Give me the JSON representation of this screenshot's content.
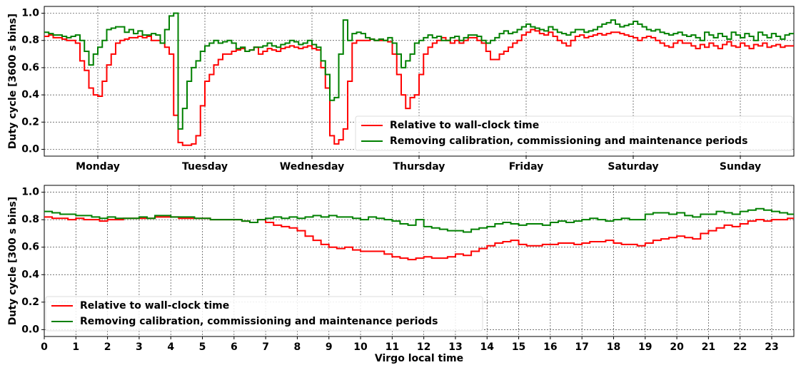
{
  "chart_data": [
    {
      "type": "line",
      "drawstyle": "steps-post",
      "ylabel": "Duty cycle [3600 s bins]",
      "xlim": [
        0,
        168
      ],
      "ylim": [
        -0.05,
        1.05
      ],
      "xticks": [
        {
          "value": 12,
          "label": "Monday"
        },
        {
          "value": 36,
          "label": "Tuesday"
        },
        {
          "value": 60,
          "label": "Wednesday"
        },
        {
          "value": 84,
          "label": "Thursday"
        },
        {
          "value": 108,
          "label": "Friday"
        },
        {
          "value": 132,
          "label": "Saturday"
        },
        {
          "value": 156,
          "label": "Sunday"
        }
      ],
      "yticks": [
        {
          "value": 0,
          "label": "0.0"
        },
        0.2,
        0.4,
        0.6,
        0.8,
        {
          "value": 1,
          "label": "1.0"
        }
      ],
      "grid": true,
      "legend_loc": "lower right",
      "x": [
        0,
        1,
        2,
        3,
        4,
        5,
        6,
        7,
        8,
        9,
        10,
        11,
        12,
        13,
        14,
        15,
        16,
        17,
        18,
        19,
        20,
        21,
        22,
        23,
        24,
        25,
        26,
        27,
        28,
        29,
        30,
        31,
        32,
        33,
        34,
        35,
        36,
        37,
        38,
        39,
        40,
        41,
        42,
        43,
        44,
        45,
        46,
        47,
        48,
        49,
        50,
        51,
        52,
        53,
        54,
        55,
        56,
        57,
        58,
        59,
        60,
        61,
        62,
        63,
        64,
        65,
        66,
        67,
        68,
        69,
        70,
        71,
        72,
        73,
        74,
        75,
        76,
        77,
        78,
        79,
        80,
        81,
        82,
        83,
        84,
        85,
        86,
        87,
        88,
        89,
        90,
        91,
        92,
        93,
        94,
        95,
        96,
        97,
        98,
        99,
        100,
        101,
        102,
        103,
        104,
        105,
        106,
        107,
        108,
        109,
        110,
        111,
        112,
        113,
        114,
        115,
        116,
        117,
        118,
        119,
        120,
        121,
        122,
        123,
        124,
        125,
        126,
        127,
        128,
        129,
        130,
        131,
        132,
        133,
        134,
        135,
        136,
        137,
        138,
        139,
        140,
        141,
        142,
        143,
        144,
        145,
        146,
        147,
        148,
        149,
        150,
        151,
        152,
        153,
        154,
        155,
        156,
        157,
        158,
        159,
        160,
        161,
        162,
        163,
        164,
        165,
        166,
        167
      ],
      "series": [
        {
          "name": "Relative to wall-clock time",
          "color": "#ff0000",
          "values": [
            0.83,
            0.84,
            0.82,
            0.82,
            0.81,
            0.8,
            0.8,
            0.78,
            0.65,
            0.58,
            0.45,
            0.4,
            0.39,
            0.5,
            0.62,
            0.7,
            0.78,
            0.8,
            0.81,
            0.82,
            0.82,
            0.83,
            0.82,
            0.83,
            0.8,
            0.8,
            0.78,
            0.75,
            0.7,
            0.25,
            0.05,
            0.03,
            0.03,
            0.04,
            0.1,
            0.32,
            0.5,
            0.55,
            0.62,
            0.66,
            0.7,
            0.7,
            0.72,
            0.73,
            0.74,
            0.72,
            0.73,
            0.75,
            0.7,
            0.72,
            0.74,
            0.73,
            0.72,
            0.74,
            0.75,
            0.76,
            0.75,
            0.74,
            0.75,
            0.76,
            0.74,
            0.73,
            0.6,
            0.45,
            0.1,
            0.04,
            0.07,
            0.15,
            0.5,
            0.78,
            0.8,
            0.8,
            0.8,
            0.81,
            0.8,
            0.8,
            0.8,
            0.79,
            0.7,
            0.55,
            0.4,
            0.3,
            0.38,
            0.4,
            0.55,
            0.7,
            0.75,
            0.78,
            0.8,
            0.82,
            0.8,
            0.78,
            0.8,
            0.78,
            0.8,
            0.82,
            0.82,
            0.8,
            0.78,
            0.72,
            0.66,
            0.66,
            0.7,
            0.72,
            0.75,
            0.78,
            0.8,
            0.84,
            0.86,
            0.88,
            0.87,
            0.85,
            0.84,
            0.86,
            0.83,
            0.8,
            0.78,
            0.76,
            0.8,
            0.83,
            0.84,
            0.82,
            0.83,
            0.84,
            0.85,
            0.84,
            0.85,
            0.86,
            0.86,
            0.85,
            0.84,
            0.83,
            0.82,
            0.8,
            0.82,
            0.83,
            0.82,
            0.8,
            0.78,
            0.76,
            0.75,
            0.78,
            0.8,
            0.78,
            0.78,
            0.76,
            0.74,
            0.77,
            0.75,
            0.78,
            0.76,
            0.74,
            0.77,
            0.79,
            0.76,
            0.75,
            0.78,
            0.76,
            0.74,
            0.77,
            0.76,
            0.78,
            0.75,
            0.76,
            0.77,
            0.75,
            0.76,
            0.76
          ]
        },
        {
          "name": "Removing calibration, commissioning and maintenance periods",
          "color": "#008000",
          "values": [
            0.86,
            0.85,
            0.84,
            0.84,
            0.83,
            0.82,
            0.83,
            0.84,
            0.8,
            0.72,
            0.62,
            0.7,
            0.75,
            0.8,
            0.88,
            0.89,
            0.9,
            0.9,
            0.86,
            0.88,
            0.85,
            0.87,
            0.84,
            0.84,
            0.85,
            0.84,
            0.78,
            0.88,
            0.98,
            1.0,
            0.15,
            0.3,
            0.5,
            0.6,
            0.65,
            0.72,
            0.76,
            0.78,
            0.8,
            0.78,
            0.79,
            0.8,
            0.78,
            0.74,
            0.75,
            0.72,
            0.73,
            0.75,
            0.75,
            0.76,
            0.78,
            0.76,
            0.75,
            0.77,
            0.78,
            0.8,
            0.79,
            0.77,
            0.78,
            0.8,
            0.77,
            0.75,
            0.65,
            0.55,
            0.36,
            0.38,
            0.7,
            0.95,
            0.8,
            0.85,
            0.86,
            0.85,
            0.82,
            0.81,
            0.8,
            0.81,
            0.8,
            0.82,
            0.78,
            0.7,
            0.6,
            0.65,
            0.7,
            0.78,
            0.8,
            0.82,
            0.84,
            0.82,
            0.83,
            0.8,
            0.8,
            0.82,
            0.83,
            0.8,
            0.82,
            0.84,
            0.84,
            0.83,
            0.8,
            0.78,
            0.8,
            0.82,
            0.85,
            0.87,
            0.85,
            0.86,
            0.88,
            0.9,
            0.92,
            0.9,
            0.89,
            0.88,
            0.87,
            0.9,
            0.88,
            0.86,
            0.85,
            0.84,
            0.86,
            0.88,
            0.88,
            0.86,
            0.87,
            0.88,
            0.9,
            0.92,
            0.93,
            0.95,
            0.92,
            0.9,
            0.91,
            0.92,
            0.94,
            0.92,
            0.9,
            0.88,
            0.87,
            0.88,
            0.86,
            0.85,
            0.84,
            0.85,
            0.86,
            0.84,
            0.83,
            0.84,
            0.82,
            0.8,
            0.86,
            0.84,
            0.82,
            0.85,
            0.83,
            0.81,
            0.86,
            0.84,
            0.82,
            0.85,
            0.83,
            0.8,
            0.86,
            0.84,
            0.82,
            0.85,
            0.83,
            0.81,
            0.84,
            0.85
          ]
        }
      ]
    },
    {
      "type": "line",
      "drawstyle": "steps-post",
      "ylabel": "Duty cycle [300 s bins]",
      "xlabel": "Virgo local time",
      "xlim": [
        0,
        23.7
      ],
      "ylim": [
        -0.05,
        1.05
      ],
      "xticks": [
        0,
        1,
        2,
        3,
        4,
        5,
        6,
        7,
        8,
        9,
        10,
        11,
        12,
        13,
        14,
        15,
        16,
        17,
        18,
        19,
        20,
        21,
        22,
        23
      ],
      "yticks": [
        {
          "value": 0,
          "label": "0.0"
        },
        0.2,
        0.4,
        0.6,
        0.8,
        {
          "value": 1,
          "label": "1.0"
        }
      ],
      "grid": true,
      "legend_loc": "lower left",
      "x": [
        0,
        0.25,
        0.5,
        0.75,
        1,
        1.25,
        1.5,
        1.75,
        2,
        2.25,
        2.5,
        2.75,
        3,
        3.25,
        3.5,
        3.75,
        4,
        4.25,
        4.5,
        4.75,
        5,
        5.25,
        5.5,
        5.75,
        6,
        6.25,
        6.5,
        6.75,
        7,
        7.25,
        7.5,
        7.75,
        8,
        8.25,
        8.5,
        8.75,
        9,
        9.25,
        9.5,
        9.75,
        10,
        10.25,
        10.5,
        10.75,
        11,
        11.25,
        11.5,
        11.75,
        12,
        12.25,
        12.5,
        12.75,
        13,
        13.25,
        13.5,
        13.75,
        14,
        14.25,
        14.5,
        14.75,
        15,
        15.25,
        15.5,
        15.75,
        16,
        16.25,
        16.5,
        16.75,
        17,
        17.25,
        17.5,
        17.75,
        18,
        18.25,
        18.5,
        18.75,
        19,
        19.25,
        19.5,
        19.75,
        20,
        20.25,
        20.5,
        20.75,
        21,
        21.25,
        21.5,
        21.75,
        22,
        22.25,
        22.5,
        22.75,
        23,
        23.25,
        23.5,
        23.75
      ],
      "series": [
        {
          "name": "Relative to wall-clock time",
          "color": "#ff0000",
          "values": [
            0.82,
            0.81,
            0.81,
            0.8,
            0.81,
            0.8,
            0.8,
            0.79,
            0.8,
            0.8,
            0.81,
            0.81,
            0.81,
            0.81,
            0.82,
            0.82,
            0.82,
            0.81,
            0.81,
            0.81,
            0.81,
            0.8,
            0.8,
            0.8,
            0.8,
            0.79,
            0.78,
            0.8,
            0.78,
            0.76,
            0.75,
            0.74,
            0.72,
            0.68,
            0.65,
            0.62,
            0.6,
            0.59,
            0.6,
            0.58,
            0.57,
            0.57,
            0.57,
            0.55,
            0.53,
            0.52,
            0.51,
            0.52,
            0.53,
            0.52,
            0.52,
            0.53,
            0.55,
            0.54,
            0.57,
            0.59,
            0.61,
            0.63,
            0.64,
            0.65,
            0.62,
            0.61,
            0.61,
            0.62,
            0.62,
            0.63,
            0.63,
            0.62,
            0.63,
            0.64,
            0.64,
            0.65,
            0.63,
            0.62,
            0.62,
            0.61,
            0.63,
            0.65,
            0.66,
            0.67,
            0.68,
            0.67,
            0.66,
            0.7,
            0.72,
            0.74,
            0.76,
            0.75,
            0.77,
            0.79,
            0.8,
            0.79,
            0.8,
            0.8,
            0.81,
            0.82
          ]
        },
        {
          "name": "Removing calibration, commissioning and maintenance periods",
          "color": "#008000",
          "values": [
            0.86,
            0.85,
            0.84,
            0.84,
            0.83,
            0.83,
            0.82,
            0.81,
            0.82,
            0.81,
            0.81,
            0.81,
            0.82,
            0.81,
            0.83,
            0.83,
            0.82,
            0.82,
            0.82,
            0.81,
            0.81,
            0.8,
            0.8,
            0.8,
            0.8,
            0.79,
            0.78,
            0.8,
            0.81,
            0.82,
            0.81,
            0.82,
            0.81,
            0.82,
            0.83,
            0.82,
            0.83,
            0.82,
            0.82,
            0.81,
            0.8,
            0.82,
            0.81,
            0.8,
            0.79,
            0.77,
            0.76,
            0.8,
            0.75,
            0.74,
            0.73,
            0.72,
            0.72,
            0.71,
            0.73,
            0.74,
            0.75,
            0.77,
            0.78,
            0.77,
            0.76,
            0.77,
            0.77,
            0.76,
            0.78,
            0.79,
            0.78,
            0.79,
            0.8,
            0.81,
            0.8,
            0.79,
            0.8,
            0.81,
            0.8,
            0.8,
            0.84,
            0.85,
            0.85,
            0.84,
            0.85,
            0.83,
            0.82,
            0.84,
            0.84,
            0.86,
            0.85,
            0.84,
            0.86,
            0.87,
            0.88,
            0.87,
            0.86,
            0.85,
            0.84,
            0.86
          ]
        }
      ]
    }
  ]
}
